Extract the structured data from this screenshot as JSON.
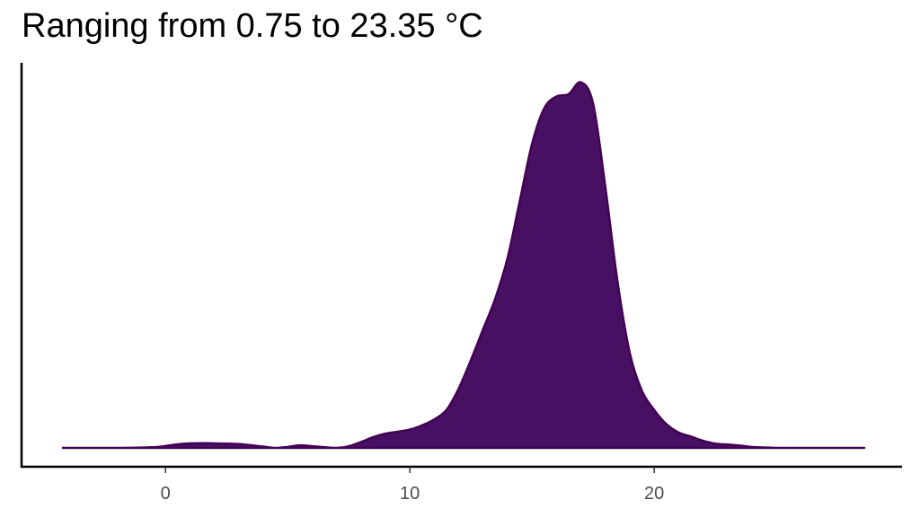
{
  "chart_data": {
    "type": "area",
    "title": "Ranging from 0.75 to 23.35 °C",
    "xlabel": "",
    "ylabel": "",
    "xlim": [
      -4.2,
      28.6
    ],
    "ylim": [
      0,
      0.155
    ],
    "x_ticks": [
      0,
      10,
      20
    ],
    "x_tick_labels": [
      "0",
      "10",
      "20"
    ],
    "y_ticks_visible": false,
    "grid": false,
    "legend": "none",
    "fill_color": "#471063",
    "stroke_color": "#440154",
    "series": [
      {
        "x": [
          -4.2,
          -2,
          -0.5,
          0,
          0.5,
          1,
          1.5,
          2,
          3,
          4,
          4.5,
          5,
          5.5,
          6,
          7,
          7.5,
          8,
          8.5,
          9,
          9.5,
          10,
          10.5,
          11,
          11.5,
          12,
          12.5,
          13,
          13.5,
          14,
          14.5,
          15,
          15.5,
          16,
          16.5,
          17,
          17.5,
          18,
          18.5,
          19,
          19.5,
          20,
          20.5,
          21,
          21.5,
          22,
          22.5,
          23,
          23.5,
          24,
          24.5,
          25,
          26,
          27,
          28.6
        ],
        "y": [
          0,
          0,
          0.0003,
          0.0008,
          0.0015,
          0.0019,
          0.002,
          0.0019,
          0.0016,
          0.0005,
          0,
          0.0004,
          0.0011,
          0.0007,
          0,
          0.0007,
          0.0025,
          0.0045,
          0.006,
          0.0068,
          0.0077,
          0.0095,
          0.012,
          0.016,
          0.025,
          0.037,
          0.05,
          0.063,
          0.08,
          0.104,
          0.128,
          0.143,
          0.148,
          0.149,
          0.154,
          0.145,
          0.11,
          0.07,
          0.04,
          0.024,
          0.016,
          0.01,
          0.0065,
          0.0048,
          0.003,
          0.0018,
          0.0014,
          0.001,
          0.0004,
          0.0002,
          0,
          0,
          0,
          0
        ]
      }
    ]
  }
}
